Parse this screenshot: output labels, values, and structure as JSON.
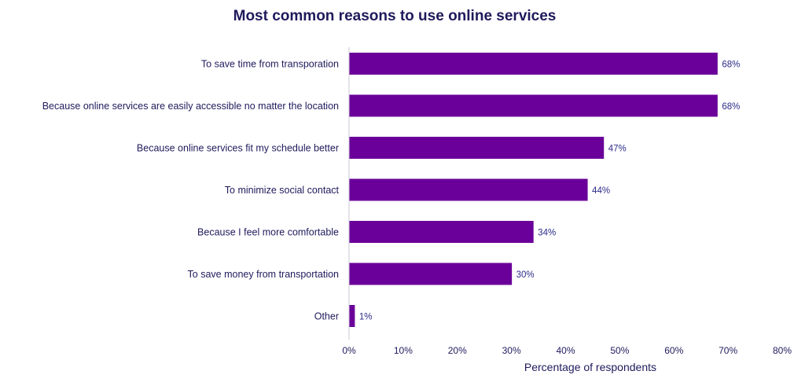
{
  "chart_data": {
    "type": "bar",
    "orientation": "horizontal",
    "title": "Most common reasons to use online services",
    "xlabel": "Percentage of respondents",
    "ylabel": "",
    "categories": [
      "To save time from transporation",
      "Because online services are easily accessible no matter the location",
      "Because online services fit my schedule better",
      "To minimize social contact",
      "Because I feel more comfortable",
      "To save money from transportation",
      "Other"
    ],
    "values": [
      68,
      68,
      47,
      44,
      34,
      30,
      1
    ],
    "value_labels": [
      "68%",
      "68%",
      "47%",
      "44%",
      "34%",
      "30%",
      "1%"
    ],
    "xlim": [
      0,
      80
    ],
    "x_ticks": [
      0,
      10,
      20,
      30,
      40,
      50,
      60,
      70,
      80
    ],
    "x_tick_labels": [
      "0%",
      "10%",
      "20%",
      "30%",
      "40%",
      "50%",
      "60%",
      "70%",
      "80%"
    ],
    "grid": false,
    "legend": "none",
    "colors": {
      "bar": "#6a0099",
      "axis": "#c8c8d8"
    }
  }
}
